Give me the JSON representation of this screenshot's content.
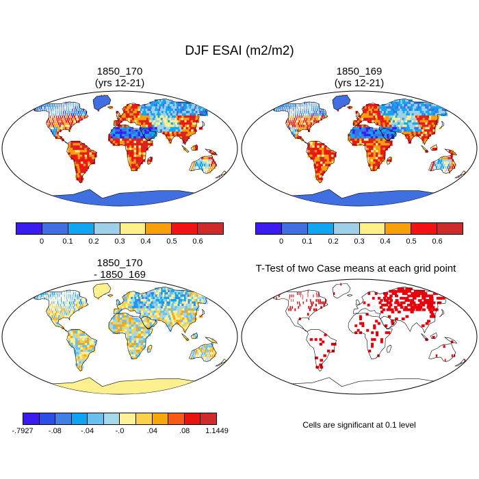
{
  "figure": {
    "title": "DJF ESAI (m2/m2)"
  },
  "panels": [
    {
      "id": "p1",
      "title_line1": "1850_170",
      "title_line2": "(yrs 12-21)"
    },
    {
      "id": "p2",
      "title_line1": "1850_169",
      "title_line2": "(yrs 12-21)"
    },
    {
      "id": "p3",
      "title_line1": "1850_170",
      "title_line2": "- 1850_169"
    },
    {
      "id": "p4",
      "title_line1": "T-Test of two Case means at each grid point",
      "title_line2": ""
    }
  ],
  "colorbar_abs": {
    "colors": [
      "#3a1cf0",
      "#3f6fe0",
      "#12a5f0",
      "#9fd0ea",
      "#fdef8a",
      "#f8a00c",
      "#f21414",
      "#cd2a2a"
    ],
    "labels": [
      "0",
      "0.1",
      "0.2",
      "0.3",
      "0.4",
      "0.5",
      "0.6"
    ]
  },
  "colorbar_diff": {
    "colors": [
      "#3a1cf0",
      "#2b4ee8",
      "#3f7fe6",
      "#0fa4f2",
      "#68c0ee",
      "#a6d8ec",
      "#fff296",
      "#fbd24a",
      "#f8a70c",
      "#f75a14",
      "#e9140e",
      "#cf2b2b"
    ],
    "labels": [
      "-.7927",
      "-.08",
      "-.04",
      "-.0",
      ".04",
      ".08",
      "1.1449"
    ]
  },
  "significance_note": "Cells are significant at 0.1 level",
  "map_colors": {
    "ocean": "#ffffff",
    "land_outline": "#000000",
    "antarctica_abs": "#3f6fe0",
    "antarctica_diff": "#fdf08e",
    "significant": "#e8000a"
  }
}
